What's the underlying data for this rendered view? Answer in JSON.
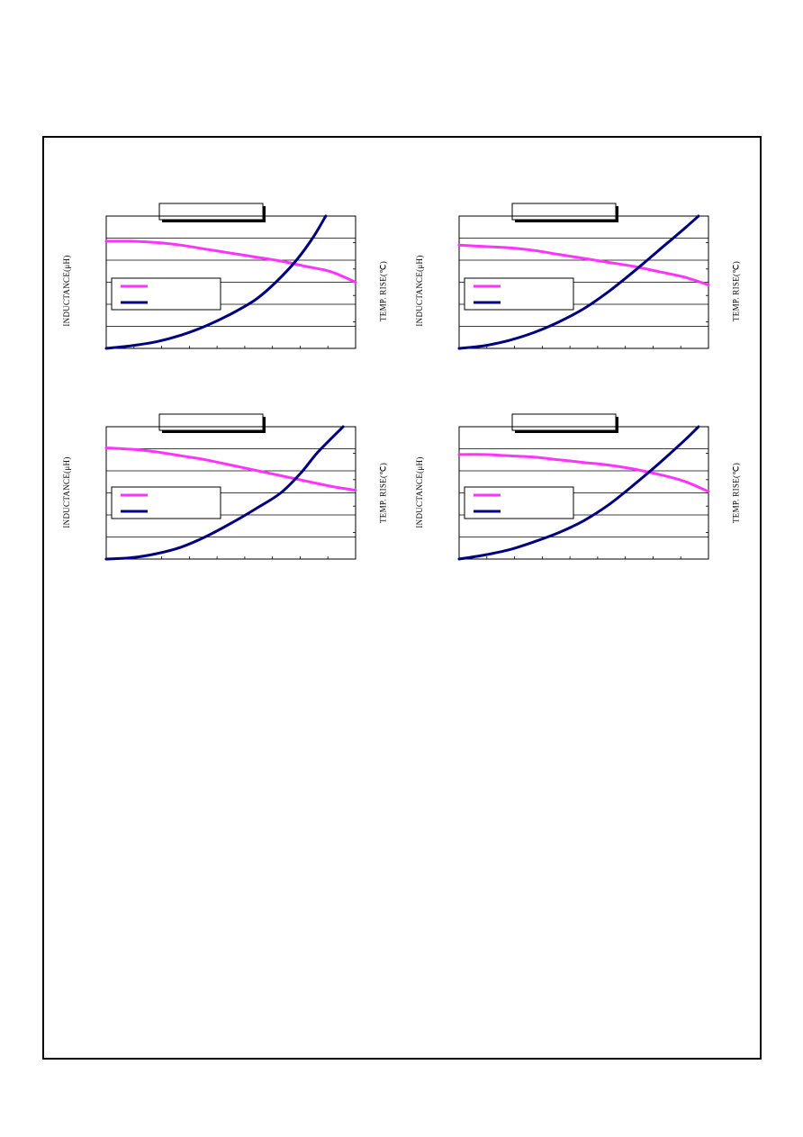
{
  "colors": {
    "inductance": "#ff33ff",
    "temp_rise": "#000080",
    "grid": "#000000"
  },
  "chart_data": [
    {
      "type": "line",
      "ylabel": "INDUCTANCE(μH)",
      "y2label": "TEMP. RISE(℃)",
      "xlim": [
        0,
        1
      ],
      "ylim": [
        0,
        1
      ],
      "y2lim": [
        0,
        1
      ],
      "series": [
        {
          "key": "inductance",
          "axis": "left",
          "x": [
            0,
            0.1,
            0.2,
            0.3,
            0.4,
            0.5,
            0.6,
            0.7,
            0.8,
            0.9,
            1.0
          ],
          "values": [
            0.81,
            0.81,
            0.8,
            0.78,
            0.75,
            0.72,
            0.69,
            0.66,
            0.62,
            0.58,
            0.5
          ]
        },
        {
          "key": "temp_rise",
          "axis": "right",
          "x": [
            0,
            0.1,
            0.2,
            0.3,
            0.4,
            0.5,
            0.6,
            0.68,
            0.76,
            0.83,
            0.88
          ],
          "values": [
            0,
            0.02,
            0.05,
            0.1,
            0.17,
            0.26,
            0.37,
            0.5,
            0.66,
            0.84,
            1.0
          ]
        }
      ]
    },
    {
      "type": "line",
      "ylabel": "INDUCTANCE(μH)",
      "y2label": "TEMP. RISE(℃)",
      "xlim": [
        0,
        1
      ],
      "ylim": [
        0,
        1
      ],
      "y2lim": [
        0,
        1
      ],
      "series": [
        {
          "key": "inductance",
          "axis": "left",
          "x": [
            0,
            0.1,
            0.2,
            0.3,
            0.4,
            0.5,
            0.6,
            0.7,
            0.8,
            0.9,
            1.0
          ],
          "values": [
            0.78,
            0.77,
            0.76,
            0.74,
            0.71,
            0.68,
            0.65,
            0.62,
            0.58,
            0.54,
            0.48
          ]
        },
        {
          "key": "temp_rise",
          "axis": "right",
          "x": [
            0,
            0.1,
            0.2,
            0.3,
            0.4,
            0.5,
            0.6,
            0.7,
            0.8,
            0.9,
            0.96
          ],
          "values": [
            0,
            0.02,
            0.06,
            0.12,
            0.2,
            0.3,
            0.43,
            0.58,
            0.74,
            0.9,
            1.0
          ]
        }
      ]
    },
    {
      "type": "line",
      "ylabel": "INDUCTANCE(μH)",
      "y2label": "TEMP. RISE(℃)",
      "xlim": [
        0,
        1
      ],
      "ylim": [
        0,
        1
      ],
      "y2lim": [
        0,
        1
      ],
      "series": [
        {
          "key": "inductance",
          "axis": "left",
          "x": [
            0,
            0.1,
            0.2,
            0.3,
            0.4,
            0.5,
            0.6,
            0.7,
            0.8,
            0.9,
            1.0
          ],
          "values": [
            0.84,
            0.83,
            0.81,
            0.78,
            0.75,
            0.71,
            0.67,
            0.63,
            0.59,
            0.55,
            0.52
          ]
        },
        {
          "key": "temp_rise",
          "axis": "right",
          "x": [
            0,
            0.1,
            0.2,
            0.3,
            0.4,
            0.5,
            0.6,
            0.7,
            0.78,
            0.85,
            0.95
          ],
          "values": [
            0,
            0.01,
            0.04,
            0.09,
            0.17,
            0.27,
            0.38,
            0.5,
            0.65,
            0.81,
            1.0
          ]
        }
      ]
    },
    {
      "type": "line",
      "ylabel": "INDUCTANCE(μH)",
      "y2label": "TEMP. RISE(℃)",
      "xlim": [
        0,
        1
      ],
      "ylim": [
        0,
        1
      ],
      "y2lim": [
        0,
        1
      ],
      "series": [
        {
          "key": "inductance",
          "axis": "left",
          "x": [
            0,
            0.1,
            0.2,
            0.3,
            0.4,
            0.5,
            0.6,
            0.7,
            0.8,
            0.9,
            1.0
          ],
          "values": [
            0.79,
            0.79,
            0.78,
            0.77,
            0.75,
            0.73,
            0.71,
            0.68,
            0.64,
            0.59,
            0.51
          ]
        },
        {
          "key": "temp_rise",
          "axis": "right",
          "x": [
            0,
            0.1,
            0.2,
            0.3,
            0.4,
            0.5,
            0.6,
            0.7,
            0.8,
            0.9,
            0.96
          ],
          "values": [
            0,
            0.03,
            0.07,
            0.13,
            0.2,
            0.29,
            0.41,
            0.56,
            0.72,
            0.89,
            1.0
          ]
        }
      ]
    }
  ]
}
